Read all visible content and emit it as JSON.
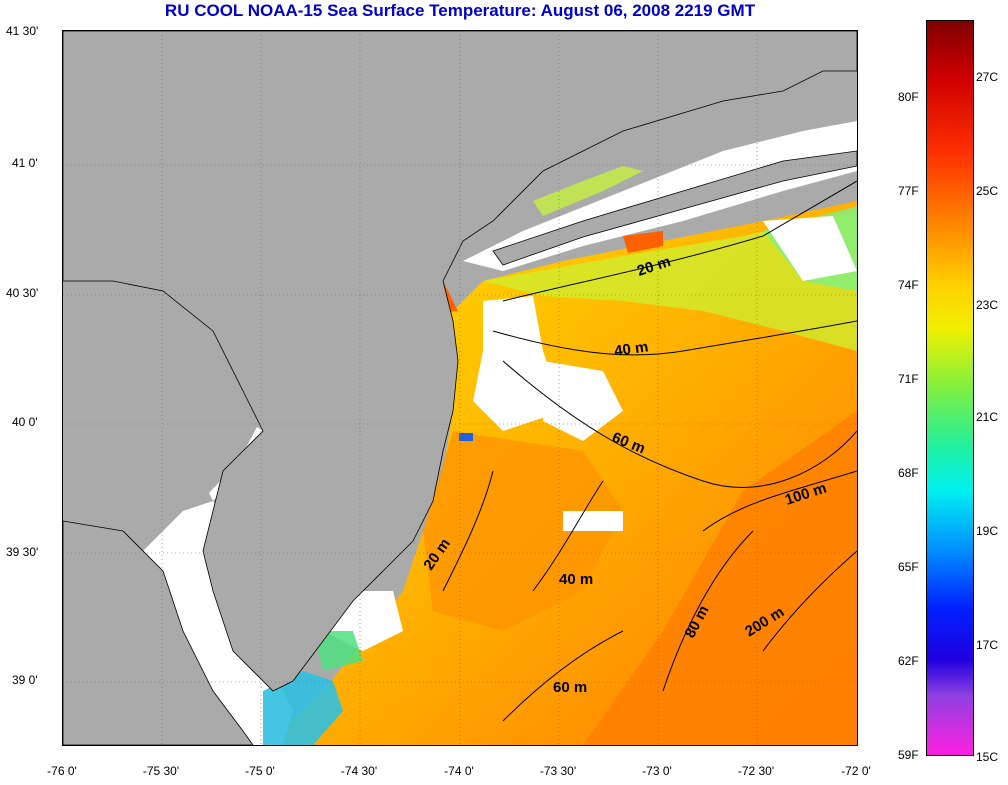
{
  "title": "RU COOL  NOAA-15  Sea Surface Temperature:  August 06, 2008 2219 GMT",
  "map": {
    "lat_ticks": [
      "41 30'",
      "41 0'",
      "40 30'",
      "40 0'",
      "39 30'",
      "39 0'"
    ],
    "lon_ticks": [
      "-76 0'",
      "-75 30'",
      "-75 0'",
      "-74 30'",
      "-74 0'",
      "-73 30'",
      "-73 0'",
      "-72 30'",
      "-72 0'"
    ],
    "contour_labels": [
      "20 m",
      "40 m",
      "60 m",
      "100 m",
      "20 m",
      "40 m",
      "80 m",
      "200 m",
      "60 m"
    ],
    "colors": {
      "land": "#aaaaaa",
      "cloud": "#ffffff",
      "frame": "#000000"
    }
  },
  "colorbar": {
    "fahrenheit": [
      "80F",
      "77F",
      "74F",
      "71F",
      "68F",
      "65F",
      "62F",
      "59F"
    ],
    "celsius": [
      "27C",
      "25C",
      "23C",
      "21C",
      "19C",
      "17C",
      "15C"
    ]
  }
}
